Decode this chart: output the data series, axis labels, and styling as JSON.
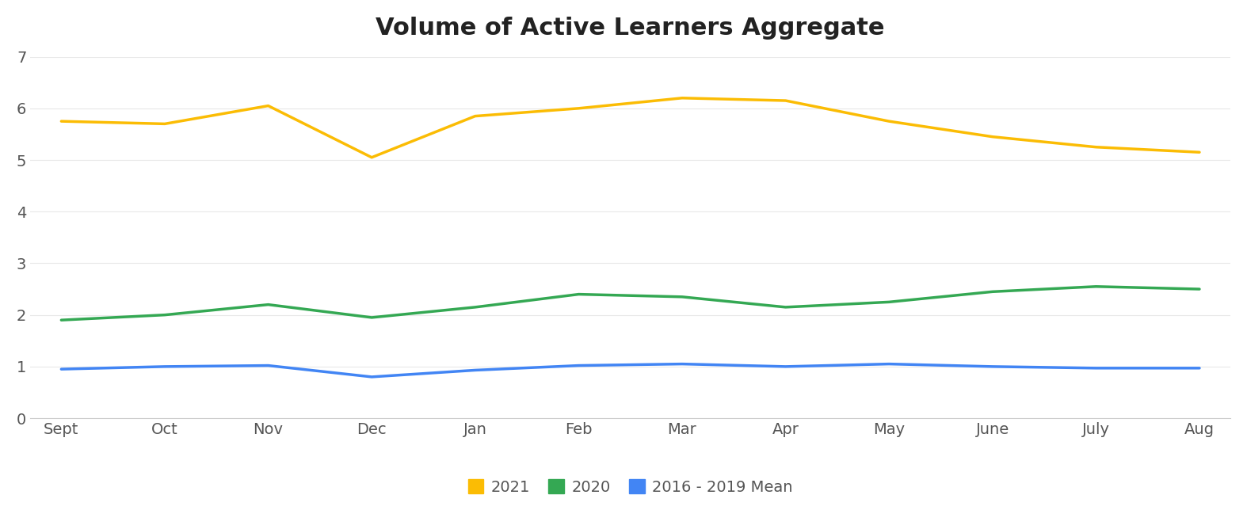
{
  "title": "Volume of Active Learners Aggregate",
  "months": [
    "Sept",
    "Oct",
    "Nov",
    "Dec",
    "Jan",
    "Feb",
    "Mar",
    "Apr",
    "May",
    "June",
    "July",
    "Aug"
  ],
  "series_2021": [
    5.75,
    5.7,
    6.05,
    5.05,
    5.85,
    6.0,
    6.2,
    6.15,
    5.75,
    5.45,
    5.25,
    5.15
  ],
  "series_2020": [
    1.9,
    2.0,
    2.2,
    1.95,
    2.15,
    2.4,
    2.35,
    2.15,
    2.25,
    2.45,
    2.55,
    2.5
  ],
  "series_mean": [
    0.95,
    1.0,
    1.02,
    0.8,
    0.93,
    1.02,
    1.05,
    1.0,
    1.05,
    1.0,
    0.97,
    0.97
  ],
  "color_2021": "#FBBC04",
  "color_2020": "#34A853",
  "color_mean": "#4285F4",
  "ylim": [
    0,
    7
  ],
  "yticks": [
    0,
    1,
    2,
    3,
    4,
    5,
    6,
    7
  ],
  "title_fontsize": 22,
  "legend_labels": [
    "2021",
    "2020",
    "2016 - 2019 Mean"
  ],
  "line_width": 2.5,
  "tick_fontsize": 14,
  "fig_width": 15.74,
  "fig_height": 6.44,
  "bg_color": "#ffffff",
  "spine_color": "#cccccc",
  "grid_color": "#e8e8e8"
}
